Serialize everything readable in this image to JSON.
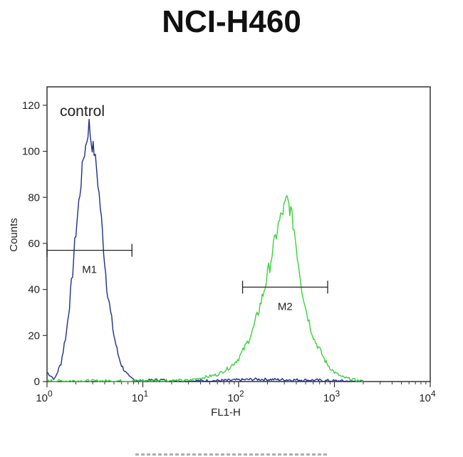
{
  "chart_data": {
    "type": "line",
    "title": "NCI-H460",
    "xlabel": "FL1-H",
    "ylabel": "Counts",
    "x_scale": "log",
    "xlim": [
      1,
      10000
    ],
    "ylim": [
      0,
      128
    ],
    "x_ticks": [
      1,
      10,
      100,
      1000,
      10000
    ],
    "x_tick_labels": [
      {
        "base": "10",
        "exp": "0"
      },
      {
        "base": "10",
        "exp": "1"
      },
      {
        "base": "10",
        "exp": "2"
      },
      {
        "base": "10",
        "exp": "3"
      },
      {
        "base": "10",
        "exp": "4"
      }
    ],
    "y_ticks": [
      0,
      20,
      40,
      60,
      80,
      100,
      120
    ],
    "y_tick_labels": [
      "0",
      "20",
      "40",
      "60",
      "80",
      "100",
      "120"
    ],
    "annotation": "control",
    "grid": false,
    "series": [
      {
        "color": "#1f2d8a",
        "x": [
          1.0,
          1.2,
          1.4,
          1.6,
          1.8,
          2.0,
          2.2,
          2.4,
          2.6,
          2.75,
          2.9,
          3.1,
          3.3,
          3.6,
          3.9,
          4.2,
          4.6,
          5.0,
          5.5,
          6.0,
          6.6,
          7.2,
          8.0,
          9.0,
          10,
          15,
          20,
          40,
          80,
          150,
          300,
          600,
          1000,
          2000
        ],
        "y": [
          4,
          1,
          8,
          22,
          42,
          65,
          82,
          97,
          105,
          112,
          104,
          100,
          92,
          76,
          58,
          42,
          30,
          20,
          12,
          7,
          4,
          2,
          1,
          0.5,
          0.3,
          0.8,
          0.2,
          0.3,
          0.5,
          1,
          0.8,
          0.6,
          0.3,
          0
        ]
      },
      {
        "color": "#3ad23a",
        "x": [
          1.0,
          10,
          30,
          60,
          80,
          100,
          120,
          140,
          160,
          180,
          200,
          230,
          260,
          290,
          320,
          350,
          380,
          420,
          460,
          500,
          560,
          620,
          700,
          800,
          900,
          1000,
          1200,
          1500,
          2000
        ],
        "y": [
          0.3,
          0.3,
          0.5,
          3,
          6,
          10,
          16,
          22,
          30,
          38,
          46,
          58,
          68,
          74,
          79,
          74,
          66,
          52,
          40,
          32,
          24,
          18,
          14,
          9,
          6,
          4,
          2,
          1,
          0
        ]
      }
    ],
    "markers": [
      {
        "label": "M1",
        "x_start": 1.0,
        "x_end": 7.7,
        "y": 57
      },
      {
        "label": "M2",
        "x_start": 110,
        "x_end": 850,
        "y": 41
      }
    ]
  }
}
